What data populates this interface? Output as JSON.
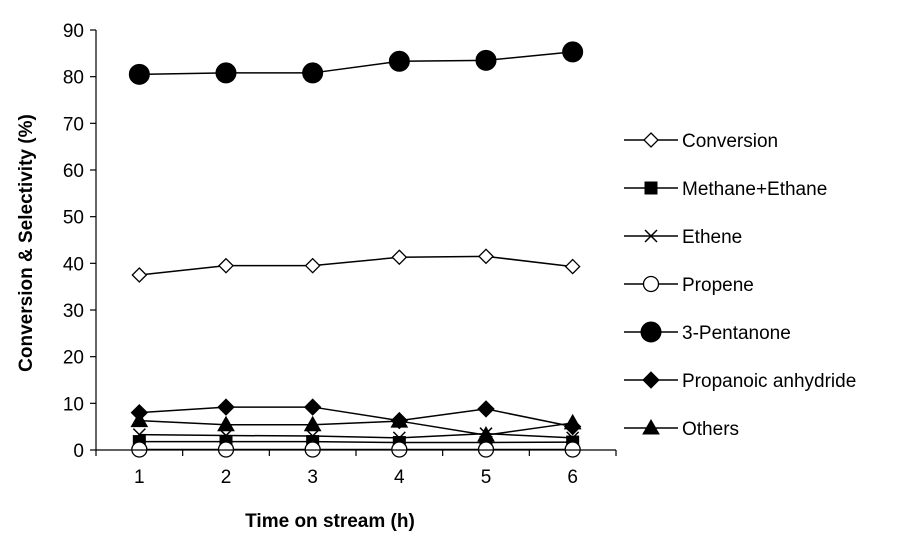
{
  "chart_data": {
    "type": "line",
    "title": "",
    "xlabel": "Time on stream (h)",
    "ylabel": "Conversion & Selectivity (%)",
    "x": [
      1,
      2,
      3,
      4,
      5,
      6
    ],
    "ylim": [
      0,
      90
    ],
    "yticks": [
      0,
      10,
      20,
      30,
      40,
      50,
      60,
      70,
      80,
      90
    ],
    "grid": false,
    "legend_position": "right",
    "series": [
      {
        "name": "Conversion",
        "marker": "open-diamond",
        "values": [
          37.5,
          39.5,
          39.5,
          41.3,
          41.5,
          39.3
        ]
      },
      {
        "name": "Methane+Ethane",
        "marker": "filled-square",
        "values": [
          1.8,
          1.8,
          1.8,
          1.6,
          1.6,
          1.7
        ]
      },
      {
        "name": "Ethene",
        "marker": "cross",
        "values": [
          3.3,
          3.1,
          3.0,
          2.6,
          3.5,
          2.6
        ]
      },
      {
        "name": "Propene",
        "marker": "open-circle",
        "values": [
          0.1,
          0.1,
          0.1,
          0.1,
          0.1,
          0.1
        ]
      },
      {
        "name": "3-Pentanone",
        "marker": "filled-circle",
        "values": [
          80.5,
          80.8,
          80.8,
          83.3,
          83.5,
          85.3
        ]
      },
      {
        "name": "Propanoic anhydride",
        "marker": "filled-diamond",
        "values": [
          8.0,
          9.2,
          9.2,
          6.3,
          8.8,
          5.0
        ]
      },
      {
        "name": "Others",
        "marker": "filled-triangle",
        "values": [
          6.3,
          5.4,
          5.4,
          6.2,
          3.2,
          5.8
        ]
      }
    ]
  }
}
